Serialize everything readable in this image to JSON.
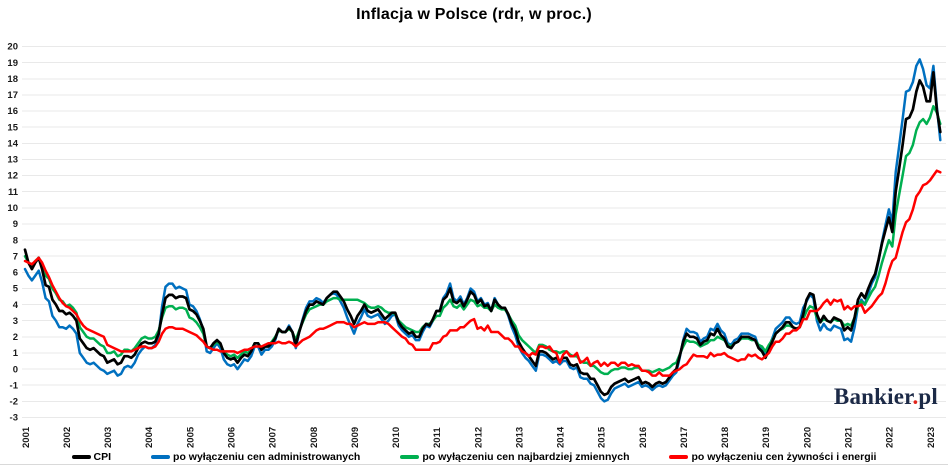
{
  "chart_data": {
    "type": "line",
    "title": "Inflacja w Polsce (rdr, w proc.)",
    "xlabel": "",
    "ylabel": "",
    "ylim": [
      -3,
      20
    ],
    "y_tick_step": 1,
    "grid": true,
    "grid_color": "#e9e9e9",
    "legend_position": "bottom",
    "x_start": "2001-01",
    "x_end": "2023-04",
    "frequency": "monthly",
    "x_tick_labels": [
      "2001",
      "2002",
      "2003",
      "2004",
      "2005",
      "2006",
      "2007",
      "2008",
      "2009",
      "2010",
      "2011",
      "2012",
      "2013",
      "2014",
      "2015",
      "2016",
      "2017",
      "2018",
      "2019",
      "2020",
      "2021",
      "2022",
      "2023"
    ],
    "series": [
      {
        "name": "CPI",
        "color": "#000000",
        "values": [
          7.4,
          6.6,
          6.2,
          6.6,
          6.9,
          6.2,
          5.2,
          5.1,
          4.3,
          4.0,
          3.6,
          3.6,
          3.4,
          3.5,
          3.3,
          3.0,
          1.9,
          1.6,
          1.3,
          1.2,
          1.3,
          1.1,
          0.9,
          0.8,
          0.4,
          0.5,
          0.6,
          0.3,
          0.4,
          0.8,
          0.8,
          0.7,
          0.9,
          1.3,
          1.6,
          1.7,
          1.6,
          1.6,
          1.7,
          2.2,
          3.4,
          4.4,
          4.6,
          4.6,
          4.4,
          4.5,
          4.5,
          4.4,
          3.7,
          3.6,
          3.4,
          3.0,
          2.5,
          1.4,
          1.3,
          1.6,
          1.8,
          1.6,
          1.0,
          0.7,
          0.6,
          0.7,
          0.4,
          0.7,
          0.9,
          0.8,
          1.1,
          1.6,
          1.6,
          1.2,
          1.4,
          1.4,
          1.6,
          1.9,
          2.5,
          2.3,
          2.3,
          2.6,
          2.3,
          1.5,
          2.3,
          3.0,
          3.6,
          4.0,
          4.0,
          4.2,
          4.1,
          4.0,
          4.4,
          4.6,
          4.8,
          4.8,
          4.5,
          4.2,
          3.7,
          3.3,
          2.8,
          3.3,
          3.6,
          4.0,
          3.6,
          3.5,
          3.6,
          3.7,
          3.4,
          3.1,
          3.3,
          3.5,
          3.5,
          2.9,
          2.6,
          2.4,
          2.2,
          2.3,
          2.0,
          2.0,
          2.5,
          2.8,
          2.7,
          3.1,
          3.6,
          3.6,
          4.3,
          4.5,
          5.0,
          4.2,
          4.1,
          4.3,
          3.9,
          4.3,
          4.8,
          4.6,
          4.1,
          4.3,
          3.9,
          4.0,
          3.6,
          4.3,
          4.0,
          3.8,
          3.8,
          3.4,
          2.8,
          2.4,
          1.7,
          1.3,
          1.0,
          0.8,
          0.5,
          0.2,
          1.1,
          1.1,
          1.0,
          0.8,
          0.6,
          0.7,
          0.5,
          0.7,
          0.7,
          0.3,
          0.2,
          0.3,
          -0.2,
          -0.3,
          -0.3,
          -0.6,
          -0.6,
          -1.0,
          -1.4,
          -1.6,
          -1.5,
          -1.1,
          -0.9,
          -0.8,
          -0.7,
          -0.6,
          -0.8,
          -0.7,
          -0.6,
          -0.5,
          -0.9,
          -0.8,
          -0.9,
          -1.1,
          -0.9,
          -0.8,
          -0.9,
          -0.8,
          -0.5,
          -0.2,
          0.0,
          0.8,
          1.7,
          2.2,
          2.0,
          2.0,
          1.9,
          1.5,
          1.7,
          1.8,
          2.2,
          2.1,
          2.5,
          2.1,
          1.9,
          1.4,
          1.3,
          1.6,
          1.7,
          2.0,
          2.0,
          2.0,
          1.9,
          1.8,
          1.3,
          1.1,
          0.7,
          1.2,
          1.7,
          2.2,
          2.4,
          2.6,
          2.9,
          2.9,
          2.6,
          2.5,
          2.6,
          3.4,
          4.3,
          4.7,
          4.6,
          3.4,
          2.9,
          3.3,
          3.0,
          2.9,
          3.2,
          3.1,
          3.0,
          2.4,
          2.6,
          2.4,
          3.2,
          4.3,
          4.7,
          4.4,
          5.0,
          5.5,
          5.9,
          6.8,
          7.8,
          8.6,
          9.4,
          8.5,
          11.0,
          12.4,
          13.9,
          15.5,
          15.6,
          16.1,
          17.2,
          17.9,
          17.5,
          16.6,
          16.6,
          18.4,
          16.1,
          14.7
        ]
      },
      {
        "name": "po wyłączeniu cen administrowanych",
        "color": "#0070c0",
        "values": [
          6.2,
          5.8,
          5.5,
          5.8,
          6.1,
          5.4,
          4.4,
          4.2,
          3.3,
          3.0,
          2.6,
          2.6,
          2.5,
          2.7,
          2.5,
          2.2,
          1.0,
          0.7,
          0.4,
          0.3,
          0.4,
          0.2,
          0.0,
          -0.1,
          -0.3,
          -0.2,
          -0.1,
          -0.4,
          -0.3,
          0.1,
          0.2,
          0.1,
          0.4,
          0.9,
          1.2,
          1.4,
          1.3,
          1.3,
          1.5,
          2.1,
          3.9,
          5.1,
          5.3,
          5.3,
          5.0,
          5.1,
          5.0,
          4.9,
          4.0,
          3.9,
          3.6,
          3.1,
          2.4,
          1.1,
          1.0,
          1.3,
          1.6,
          1.3,
          0.6,
          0.3,
          0.2,
          0.3,
          0.0,
          0.3,
          0.6,
          0.5,
          0.8,
          1.4,
          1.4,
          0.9,
          1.2,
          1.2,
          1.4,
          1.8,
          2.5,
          2.3,
          2.3,
          2.7,
          2.3,
          1.3,
          2.3,
          3.1,
          3.8,
          4.2,
          4.2,
          4.4,
          4.3,
          4.1,
          4.4,
          4.6,
          4.7,
          4.6,
          4.2,
          3.8,
          3.2,
          2.7,
          2.2,
          2.8,
          3.2,
          3.7,
          3.3,
          3.2,
          3.3,
          3.4,
          3.1,
          2.8,
          3.0,
          3.3,
          3.4,
          2.7,
          2.4,
          2.2,
          2.0,
          2.1,
          1.8,
          1.8,
          2.3,
          2.7,
          2.6,
          3.0,
          3.6,
          3.6,
          4.4,
          4.7,
          5.3,
          4.4,
          4.2,
          4.5,
          4.0,
          4.4,
          5.0,
          4.8,
          4.2,
          4.4,
          4.0,
          4.1,
          3.6,
          4.4,
          4.0,
          3.8,
          3.8,
          3.3,
          2.6,
          2.1,
          1.4,
          1.0,
          0.7,
          0.5,
          0.2,
          -0.1,
          0.9,
          0.9,
          0.8,
          0.6,
          0.4,
          0.5,
          0.3,
          0.5,
          0.5,
          0.1,
          0.0,
          0.1,
          -0.5,
          -0.6,
          -0.6,
          -0.9,
          -1.0,
          -1.4,
          -1.8,
          -2.0,
          -1.9,
          -1.5,
          -1.2,
          -1.1,
          -1.0,
          -0.9,
          -1.1,
          -1.0,
          -0.9,
          -0.8,
          -1.1,
          -1.0,
          -1.1,
          -1.3,
          -1.1,
          -1.0,
          -1.1,
          -1.0,
          -0.7,
          -0.4,
          -0.2,
          0.7,
          1.8,
          2.5,
          2.3,
          2.3,
          2.2,
          1.7,
          1.9,
          2.0,
          2.5,
          2.4,
          2.8,
          2.4,
          2.2,
          1.6,
          1.5,
          1.8,
          1.9,
          2.2,
          2.2,
          2.2,
          2.1,
          2.0,
          1.4,
          1.2,
          0.8,
          1.4,
          1.9,
          2.5,
          2.7,
          2.9,
          3.2,
          3.2,
          2.9,
          2.8,
          2.9,
          3.8,
          4.2,
          4.6,
          4.4,
          3.0,
          2.4,
          2.8,
          2.5,
          2.4,
          2.7,
          2.6,
          2.5,
          1.8,
          1.9,
          1.7,
          2.6,
          3.9,
          4.3,
          4.0,
          4.7,
          5.3,
          5.7,
          6.7,
          7.9,
          8.9,
          9.9,
          9.1,
          12.2,
          13.8,
          15.5,
          17.2,
          17.3,
          17.8,
          18.8,
          19.2,
          18.6,
          17.6,
          17.4,
          18.8,
          16.3,
          14.2
        ]
      },
      {
        "name": "po wyłączeniu cen najbardziej zmiennych",
        "color": "#00b050",
        "values": [
          7.0,
          6.6,
          6.4,
          6.7,
          6.9,
          6.5,
          5.8,
          5.6,
          5.0,
          4.7,
          4.3,
          4.2,
          3.9,
          4.0,
          3.8,
          3.5,
          2.6,
          2.3,
          2.0,
          1.9,
          1.9,
          1.7,
          1.5,
          1.4,
          1.0,
          1.0,
          1.1,
          0.8,
          0.9,
          1.2,
          1.2,
          1.1,
          1.3,
          1.6,
          1.9,
          2.0,
          1.9,
          1.9,
          2.0,
          2.4,
          3.2,
          3.8,
          3.9,
          3.9,
          3.7,
          3.8,
          3.8,
          3.7,
          3.2,
          3.1,
          2.9,
          2.6,
          2.2,
          1.4,
          1.3,
          1.5,
          1.7,
          1.5,
          1.1,
          0.9,
          0.8,
          0.9,
          0.7,
          0.9,
          1.1,
          1.0,
          1.2,
          1.6,
          1.6,
          1.3,
          1.5,
          1.5,
          1.7,
          2.0,
          2.4,
          2.3,
          2.3,
          2.5,
          2.3,
          1.8,
          2.4,
          2.9,
          3.4,
          3.7,
          3.8,
          3.9,
          4.0,
          4.0,
          4.2,
          4.3,
          4.4,
          4.4,
          4.3,
          4.3,
          4.3,
          4.3,
          4.3,
          4.3,
          4.2,
          4.1,
          3.9,
          3.8,
          3.8,
          3.9,
          3.8,
          3.6,
          3.5,
          3.5,
          3.4,
          3.0,
          2.8,
          2.6,
          2.5,
          2.4,
          2.3,
          2.3,
          2.6,
          2.8,
          2.8,
          3.0,
          3.3,
          3.3,
          3.8,
          4.0,
          4.3,
          3.9,
          3.8,
          4.0,
          3.7,
          4.0,
          4.3,
          4.2,
          3.9,
          4.0,
          3.8,
          3.8,
          3.6,
          4.0,
          3.8,
          3.7,
          3.7,
          3.4,
          3.0,
          2.7,
          2.1,
          1.8,
          1.6,
          1.4,
          1.2,
          1.0,
          1.5,
          1.5,
          1.4,
          1.2,
          1.1,
          1.1,
          1.0,
          1.1,
          1.1,
          0.9,
          0.8,
          0.8,
          0.5,
          0.4,
          0.4,
          0.2,
          0.2,
          0.0,
          -0.2,
          -0.3,
          -0.3,
          -0.1,
          0.0,
          0.0,
          0.1,
          0.1,
          0.0,
          0.0,
          0.1,
          0.1,
          -0.1,
          -0.1,
          -0.1,
          -0.2,
          -0.1,
          0.0,
          -0.1,
          0.0,
          0.1,
          0.3,
          0.4,
          0.9,
          1.4,
          1.8,
          1.7,
          1.7,
          1.6,
          1.4,
          1.5,
          1.6,
          1.8,
          1.8,
          2.0,
          1.9,
          1.8,
          1.5,
          1.4,
          1.6,
          1.7,
          1.9,
          1.9,
          1.9,
          1.8,
          1.8,
          1.5,
          1.4,
          1.1,
          1.5,
          1.8,
          2.2,
          2.4,
          2.5,
          2.7,
          2.7,
          2.6,
          2.5,
          2.6,
          3.1,
          3.6,
          3.9,
          3.8,
          3.2,
          2.9,
          3.1,
          3.0,
          2.9,
          3.1,
          3.0,
          3.0,
          2.7,
          2.8,
          2.7,
          3.2,
          3.9,
          4.2,
          4.0,
          4.4,
          4.8,
          5.1,
          5.8,
          6.6,
          7.3,
          8.0,
          7.6,
          9.6,
          10.8,
          12.0,
          13.2,
          13.4,
          13.9,
          14.8,
          15.3,
          15.5,
          15.2,
          15.6,
          16.3,
          15.9,
          15.2
        ]
      },
      {
        "name": "po wyłączeniu cen żywności i energii",
        "color": "#ff0000",
        "values": [
          6.7,
          6.6,
          6.5,
          6.7,
          6.9,
          6.6,
          6.1,
          5.7,
          5.2,
          4.8,
          4.4,
          4.1,
          3.9,
          3.8,
          3.6,
          3.4,
          3.0,
          2.7,
          2.5,
          2.4,
          2.3,
          2.2,
          2.1,
          2.0,
          1.5,
          1.4,
          1.3,
          1.2,
          1.1,
          1.1,
          1.1,
          1.1,
          1.2,
          1.3,
          1.4,
          1.4,
          1.3,
          1.3,
          1.4,
          1.7,
          2.2,
          2.5,
          2.6,
          2.6,
          2.5,
          2.5,
          2.5,
          2.4,
          2.3,
          2.2,
          2.1,
          1.9,
          1.7,
          1.4,
          1.3,
          1.2,
          1.2,
          1.1,
          1.1,
          1.1,
          1.1,
          1.1,
          1.0,
          1.1,
          1.2,
          1.2,
          1.3,
          1.4,
          1.4,
          1.4,
          1.5,
          1.6,
          1.6,
          1.6,
          1.7,
          1.6,
          1.6,
          1.7,
          1.6,
          1.4,
          1.6,
          1.8,
          1.9,
          2.0,
          2.2,
          2.4,
          2.5,
          2.5,
          2.6,
          2.7,
          2.8,
          2.9,
          2.9,
          2.9,
          2.8,
          2.8,
          2.6,
          2.7,
          2.8,
          2.9,
          2.8,
          2.8,
          2.8,
          2.9,
          2.9,
          2.9,
          2.8,
          2.6,
          2.4,
          2.2,
          2.0,
          1.9,
          1.6,
          1.5,
          1.2,
          1.2,
          1.2,
          1.2,
          1.2,
          1.6,
          1.6,
          1.7,
          2.0,
          2.1,
          2.4,
          2.4,
          2.4,
          2.6,
          2.6,
          2.8,
          3.0,
          3.1,
          2.5,
          2.6,
          2.4,
          2.7,
          2.3,
          2.3,
          2.3,
          2.1,
          1.9,
          1.9,
          1.7,
          1.4,
          1.4,
          1.1,
          1.0,
          0.8,
          1.0,
          0.9,
          1.4,
          1.4,
          1.3,
          1.4,
          1.1,
          1.0,
          0.4,
          0.9,
          1.1,
          0.8,
          0.8,
          1.0,
          0.4,
          0.5,
          0.7,
          0.2,
          0.4,
          0.5,
          0.2,
          0.4,
          0.2,
          0.4,
          0.4,
          0.2,
          0.4,
          0.4,
          0.2,
          0.3,
          0.2,
          0.2,
          -0.1,
          -0.1,
          -0.2,
          -0.4,
          -0.4,
          -0.2,
          -0.4,
          -0.4,
          -0.4,
          -0.2,
          -0.1,
          0.0,
          0.2,
          0.3,
          0.6,
          0.9,
          0.8,
          0.8,
          0.8,
          0.7,
          1.0,
          0.8,
          0.9,
          0.9,
          1.0,
          0.8,
          0.7,
          0.6,
          0.5,
          0.6,
          0.6,
          0.9,
          0.8,
          0.9,
          0.7,
          0.6,
          0.8,
          1.0,
          1.4,
          1.7,
          1.7,
          1.9,
          2.2,
          2.2,
          2.4,
          2.4,
          2.6,
          3.1,
          3.1,
          3.6,
          3.6,
          3.6,
          3.8,
          4.1,
          4.3,
          4.0,
          4.3,
          4.2,
          4.3,
          3.7,
          3.9,
          3.7,
          3.9,
          3.9,
          4.0,
          3.5,
          3.7,
          3.9,
          4.2,
          4.5,
          4.7,
          5.3,
          6.1,
          6.7,
          6.9,
          7.7,
          8.5,
          9.1,
          9.3,
          9.9,
          10.7,
          11.0,
          11.4,
          11.5,
          11.7,
          12.0,
          12.3,
          12.2
        ]
      }
    ]
  },
  "brand": {
    "text_main": "Bankier",
    "separator_dot": ".",
    "text_suffix": "pl",
    "dot_color": "#e2231a",
    "text_color": "#1c2a47"
  }
}
